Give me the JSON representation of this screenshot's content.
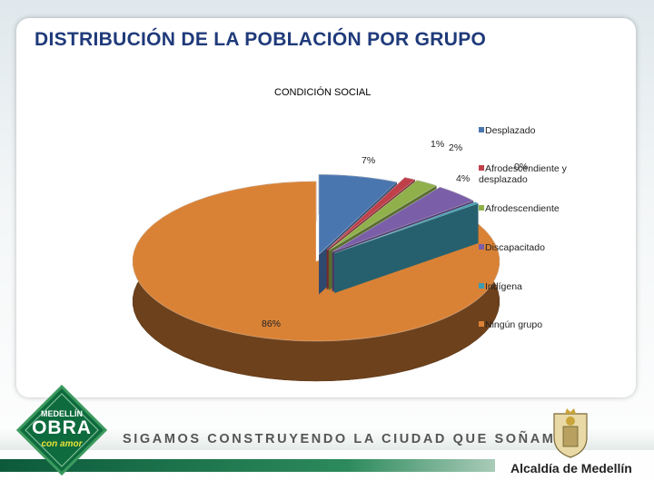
{
  "header": {
    "title": "DISTRIBUCIÓN DE LA POBLACIÓN POR GRUPO"
  },
  "chart_data": {
    "type": "pie",
    "title": "CONDICIÓN SOCIAL",
    "categories": [
      "Desplazado",
      "Afrodescendiente y desplazado",
      "Afrodescendiente",
      "Discapacitado",
      "Indígena",
      "Ningún grupo"
    ],
    "values": [
      7,
      1,
      2,
      4,
      0,
      86
    ],
    "labels": [
      "7%",
      "1%",
      "2%",
      "4%",
      "0%",
      "86%"
    ],
    "colors": [
      "#4a76b0",
      "#c0404a",
      "#8fb04a",
      "#7a5ea8",
      "#3d9bb2",
      "#d98236"
    ],
    "legend": "right",
    "style": "3d-exploded"
  },
  "footer": {
    "slogan": "SIGAMOS CONSTRUYENDO LA CIUDAD QUE SOÑAMOS",
    "logo_top": "MEDELLÍN",
    "logo_main": "OBRA",
    "logo_bottom": "con amor",
    "org": "Alcaldía de Medellín"
  }
}
